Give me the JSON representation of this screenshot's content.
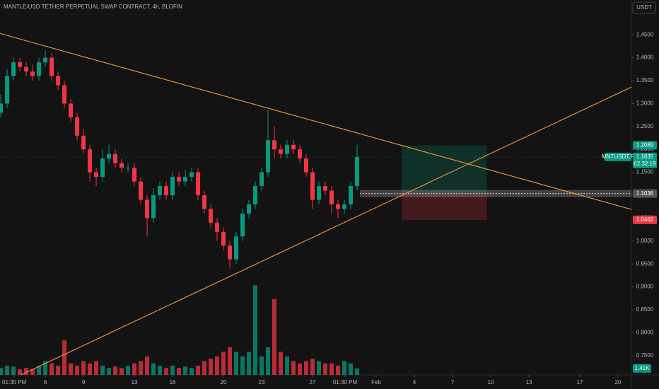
{
  "chart_data": {
    "type": "candlestick",
    "title": "MANTLE/USD TETHER PERPETUAL SWAP CONTRACT, 4h, BLOFIN",
    "currency_button": "USDT",
    "up_color": "#089981",
    "down_color": "#f23645",
    "xlim": [
      2.44,
      52.06
    ],
    "ylim": [
      0.708,
      1.526
    ],
    "vlim": [
      0,
      20
    ],
    "xticks": [
      {
        "value": 3.56,
        "label": "01:30 PM"
      },
      6,
      9,
      13,
      16,
      20,
      23,
      27,
      {
        "value": 29.56,
        "label": "01:30 PM"
      },
      {
        "value": 32,
        "label": "Feb"
      },
      {
        "value": 35,
        "label": "4"
      },
      {
        "value": 38,
        "label": "7"
      },
      {
        "value": 41,
        "label": "10"
      },
      {
        "value": 44,
        "label": "13"
      },
      {
        "value": 48,
        "label": "17"
      },
      {
        "value": 51,
        "label": "20"
      }
    ],
    "yticks": [
      {
        "value": 1.45,
        "label": "1.4500"
      },
      {
        "value": 1.4,
        "label": "1.4000"
      },
      {
        "value": 1.35,
        "label": "1.3500"
      },
      {
        "value": 1.3,
        "label": "1.3000"
      },
      {
        "value": 1.25,
        "label": "1.2500"
      },
      {
        "value": 1.2,
        "label": "1.2000"
      },
      {
        "value": 1.15,
        "label": "1.1500"
      },
      {
        "value": 1.1,
        "label": "1.1000"
      },
      {
        "value": 1.05,
        "label": "1.0500"
      },
      {
        "value": 1.0,
        "label": "1.0000"
      },
      {
        "value": 0.95,
        "label": "0.9500"
      },
      {
        "value": 0.9,
        "label": "0.9000"
      },
      {
        "value": 0.85,
        "label": "0.8500"
      },
      {
        "value": 0.8,
        "label": "0.8000"
      },
      {
        "value": 0.75,
        "label": "0.7500"
      }
    ],
    "x": [
      2.5,
      3,
      3.5,
      4,
      4.5,
      5,
      5.5,
      6,
      6.5,
      7,
      7.5,
      8,
      8.5,
      9,
      9.5,
      10,
      10.5,
      11,
      11.5,
      12,
      12.5,
      13,
      13.5,
      14,
      14.5,
      15,
      15.5,
      16,
      16.5,
      17,
      17.5,
      18,
      18.5,
      19,
      19.5,
      20,
      20.5,
      21,
      21.5,
      22,
      22.5,
      23,
      23.5,
      24,
      24.5,
      25,
      25.5,
      26,
      26.5,
      27,
      27.5,
      28,
      28.5,
      29,
      29.5,
      30,
      30.5
    ],
    "open": [
      1.28,
      1.3,
      1.36,
      1.39,
      1.38,
      1.37,
      1.36,
      1.39,
      1.4,
      1.36,
      1.34,
      1.3,
      1.27,
      1.23,
      1.2,
      1.15,
      1.14,
      1.18,
      1.19,
      1.17,
      1.16,
      1.16,
      1.13,
      1.09,
      1.05,
      1.1,
      1.12,
      1.1,
      1.14,
      1.13,
      1.14,
      1.15,
      1.1,
      1.07,
      1.04,
      1.02,
      0.99,
      0.96,
      1.01,
      1.06,
      1.08,
      1.12,
      1.15,
      1.22,
      1.2,
      1.19,
      1.21,
      1.2,
      1.18,
      1.15,
      1.09,
      1.12,
      1.11,
      1.08,
      1.07,
      1.08,
      1.12
    ],
    "high": [
      1.32,
      1.375,
      1.4,
      1.4,
      1.39,
      1.385,
      1.4,
      1.415,
      1.41,
      1.37,
      1.35,
      1.31,
      1.28,
      1.245,
      1.21,
      1.16,
      1.2,
      1.21,
      1.2,
      1.18,
      1.17,
      1.17,
      1.14,
      1.1,
      1.115,
      1.13,
      1.13,
      1.15,
      1.15,
      1.155,
      1.16,
      1.16,
      1.11,
      1.08,
      1.05,
      1.03,
      1.0,
      1.02,
      1.07,
      1.09,
      1.13,
      1.16,
      1.285,
      1.25,
      1.21,
      1.22,
      1.22,
      1.21,
      1.19,
      1.16,
      1.13,
      1.13,
      1.12,
      1.09,
      1.09,
      1.13,
      1.21
    ],
    "low": [
      1.27,
      1.29,
      1.35,
      1.37,
      1.36,
      1.35,
      1.35,
      1.38,
      1.35,
      1.33,
      1.29,
      1.26,
      1.22,
      1.19,
      1.13,
      1.12,
      1.13,
      1.17,
      1.16,
      1.15,
      1.15,
      1.12,
      1.08,
      1.01,
      1.04,
      1.09,
      1.09,
      1.09,
      1.12,
      1.12,
      1.13,
      1.09,
      1.06,
      1.03,
      1.0,
      0.98,
      0.94,
      0.95,
      1.0,
      1.05,
      1.07,
      1.11,
      1.14,
      1.18,
      1.18,
      1.18,
      1.19,
      1.17,
      1.14,
      1.07,
      1.08,
      1.1,
      1.06,
      1.05,
      1.06,
      1.07,
      1.11
    ],
    "close": [
      1.3,
      1.36,
      1.39,
      1.38,
      1.37,
      1.36,
      1.39,
      1.4,
      1.36,
      1.34,
      1.3,
      1.27,
      1.23,
      1.2,
      1.15,
      1.14,
      1.18,
      1.19,
      1.17,
      1.16,
      1.16,
      1.13,
      1.09,
      1.05,
      1.1,
      1.12,
      1.1,
      1.14,
      1.13,
      1.14,
      1.15,
      1.1,
      1.07,
      1.04,
      1.02,
      0.99,
      0.96,
      1.01,
      1.06,
      1.08,
      1.12,
      1.15,
      1.22,
      1.2,
      1.19,
      1.21,
      1.2,
      1.18,
      1.15,
      1.09,
      1.12,
      1.11,
      1.08,
      1.07,
      1.08,
      1.12,
      1.1835
    ],
    "volume": [
      1.5,
      2,
      1.8,
      1.2,
      1.5,
      1.3,
      2,
      3,
      2.5,
      2,
      7.5,
      2.5,
      2,
      3,
      2.5,
      3,
      2,
      1.5,
      1.8,
      1.5,
      2,
      2.5,
      3,
      4,
      2.5,
      2,
      1.5,
      2,
      1.5,
      1.8,
      1.5,
      2,
      3,
      3.5,
      4,
      5,
      6,
      5,
      4,
      5,
      19.5,
      4,
      6,
      16.5,
      5,
      4,
      3,
      2.5,
      3,
      3.5,
      3,
      2.5,
      2.5,
      2,
      3,
      2.5,
      1.41
    ],
    "volume_label": "1.41K",
    "trendlines": [
      {
        "x": [
          2.44,
          52.06
        ],
        "y": [
          1.453,
          1.069
        ],
        "color": "#e8913a"
      },
      {
        "x": [
          4.1,
          52.06
        ],
        "y": [
          0.708,
          1.336
        ],
        "color": "#e8913a"
      }
    ],
    "position": {
      "start": 34,
      "end": 40.7,
      "entry": 1.1036,
      "target": 1.2089,
      "stop": 1.0462
    },
    "last_price": {
      "symbol": "MNTUSDT.P",
      "value": 1.1835,
      "label": "1.1835",
      "countdown": "02:32:19",
      "color": "#089981"
    }
  }
}
